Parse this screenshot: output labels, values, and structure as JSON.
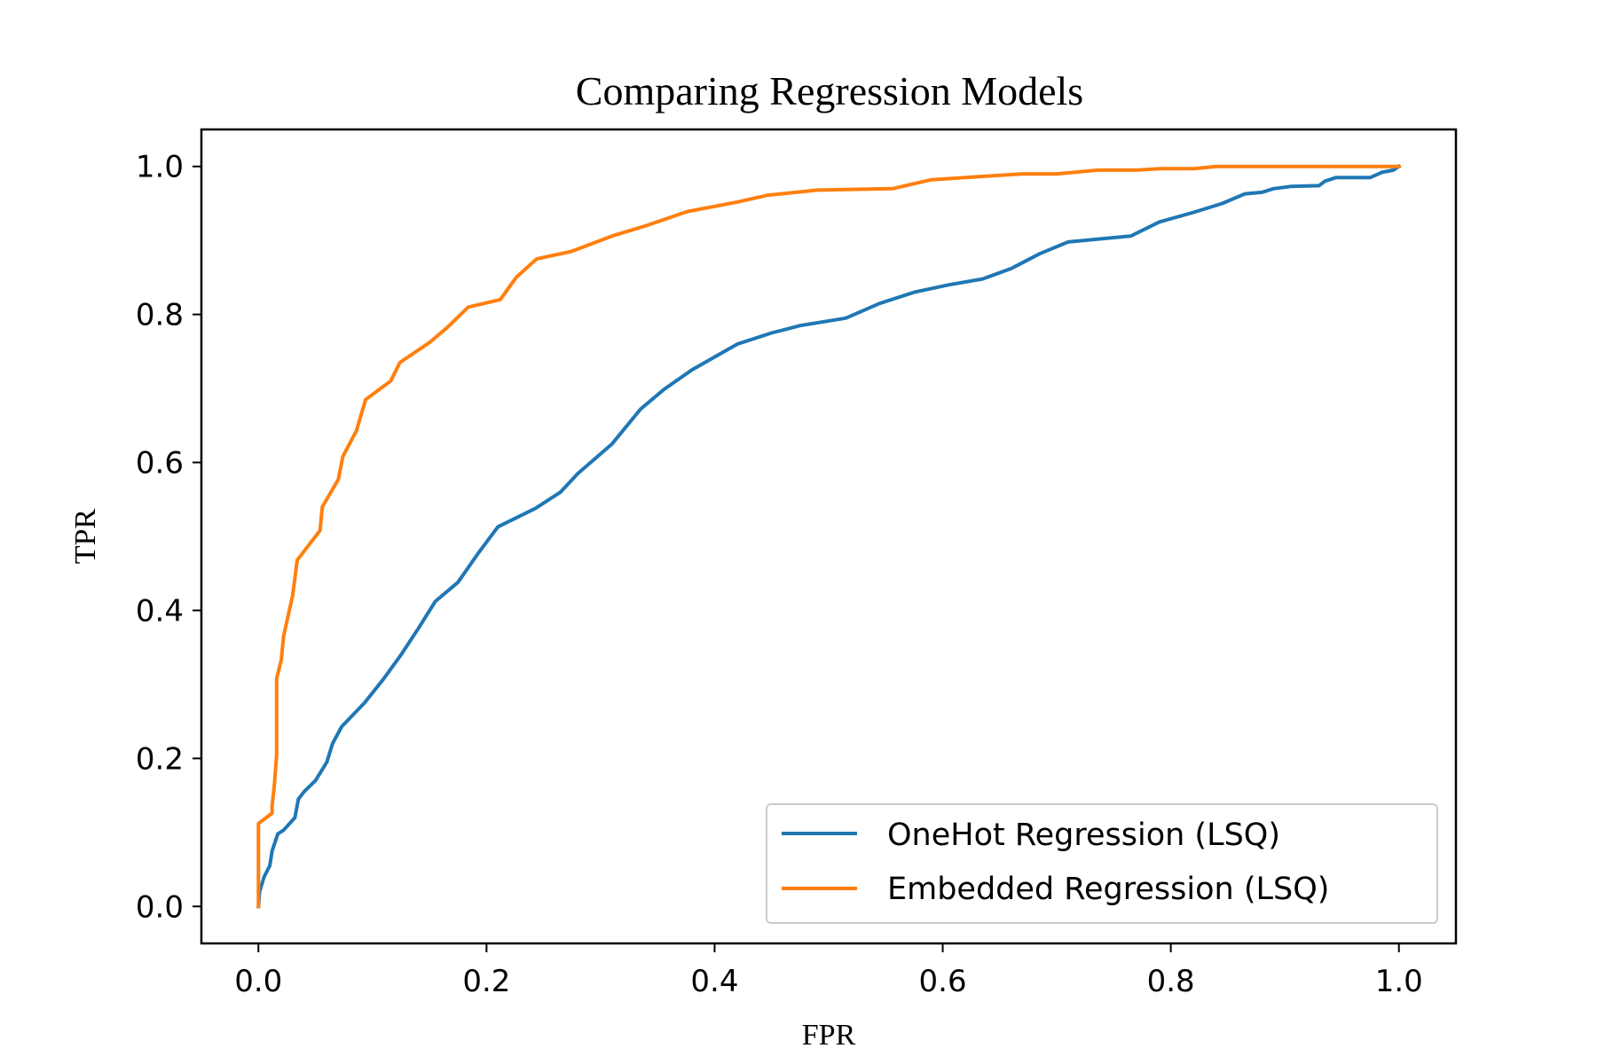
{
  "chart_data": {
    "type": "line",
    "title": "Comparing Regression Models",
    "xlabel": "FPR",
    "ylabel": "TPR",
    "xlim": [
      -0.05,
      1.05
    ],
    "ylim": [
      -0.05,
      1.05
    ],
    "xticks": [
      "0.0",
      "0.2",
      "0.4",
      "0.6",
      "0.8",
      "1.0"
    ],
    "yticks": [
      "0.0",
      "0.2",
      "0.4",
      "0.6",
      "0.8",
      "1.0"
    ],
    "grid": false,
    "legend_position": "lower-right",
    "series": [
      {
        "name": "OneHot Regression (LSQ)",
        "color": "#1f77b4",
        "points": [
          [
            0.0,
            0.0
          ],
          [
            0.001,
            0.02
          ],
          [
            0.005,
            0.04
          ],
          [
            0.01,
            0.055
          ],
          [
            0.012,
            0.075
          ],
          [
            0.017,
            0.098
          ],
          [
            0.022,
            0.103
          ],
          [
            0.032,
            0.12
          ],
          [
            0.035,
            0.145
          ],
          [
            0.04,
            0.155
          ],
          [
            0.05,
            0.17
          ],
          [
            0.06,
            0.195
          ],
          [
            0.065,
            0.22
          ],
          [
            0.073,
            0.243
          ],
          [
            0.093,
            0.275
          ],
          [
            0.11,
            0.308
          ],
          [
            0.125,
            0.34
          ],
          [
            0.14,
            0.375
          ],
          [
            0.155,
            0.412
          ],
          [
            0.175,
            0.438
          ],
          [
            0.193,
            0.478
          ],
          [
            0.21,
            0.513
          ],
          [
            0.243,
            0.538
          ],
          [
            0.265,
            0.56
          ],
          [
            0.28,
            0.585
          ],
          [
            0.31,
            0.625
          ],
          [
            0.335,
            0.672
          ],
          [
            0.355,
            0.698
          ],
          [
            0.38,
            0.725
          ],
          [
            0.42,
            0.76
          ],
          [
            0.45,
            0.775
          ],
          [
            0.475,
            0.785
          ],
          [
            0.515,
            0.795
          ],
          [
            0.545,
            0.815
          ],
          [
            0.575,
            0.83
          ],
          [
            0.605,
            0.84
          ],
          [
            0.635,
            0.848
          ],
          [
            0.66,
            0.862
          ],
          [
            0.685,
            0.882
          ],
          [
            0.71,
            0.898
          ],
          [
            0.765,
            0.906
          ],
          [
            0.79,
            0.925
          ],
          [
            0.82,
            0.938
          ],
          [
            0.845,
            0.95
          ],
          [
            0.865,
            0.963
          ],
          [
            0.88,
            0.965
          ],
          [
            0.89,
            0.97
          ],
          [
            0.905,
            0.973
          ],
          [
            0.93,
            0.974
          ],
          [
            0.935,
            0.98
          ],
          [
            0.945,
            0.985
          ],
          [
            0.975,
            0.985
          ],
          [
            0.985,
            0.992
          ],
          [
            0.995,
            0.995
          ],
          [
            1.0,
            1.0
          ]
        ]
      },
      {
        "name": "Embedded Regression (LSQ)",
        "color": "#ff7f0e",
        "points": [
          [
            0.0,
            0.0
          ],
          [
            0.0,
            0.112
          ],
          [
            0.012,
            0.126
          ],
          [
            0.012,
            0.136
          ],
          [
            0.014,
            0.165
          ],
          [
            0.016,
            0.205
          ],
          [
            0.016,
            0.308
          ],
          [
            0.02,
            0.333
          ],
          [
            0.022,
            0.365
          ],
          [
            0.03,
            0.42
          ],
          [
            0.034,
            0.468
          ],
          [
            0.054,
            0.508
          ],
          [
            0.056,
            0.54
          ],
          [
            0.07,
            0.577
          ],
          [
            0.074,
            0.608
          ],
          [
            0.086,
            0.643
          ],
          [
            0.094,
            0.685
          ],
          [
            0.116,
            0.71
          ],
          [
            0.124,
            0.735
          ],
          [
            0.15,
            0.762
          ],
          [
            0.166,
            0.783
          ],
          [
            0.184,
            0.81
          ],
          [
            0.212,
            0.82
          ],
          [
            0.226,
            0.85
          ],
          [
            0.244,
            0.875
          ],
          [
            0.274,
            0.885
          ],
          [
            0.31,
            0.906
          ],
          [
            0.34,
            0.92
          ],
          [
            0.376,
            0.939
          ],
          [
            0.42,
            0.952
          ],
          [
            0.446,
            0.961
          ],
          [
            0.49,
            0.968
          ],
          [
            0.556,
            0.97
          ],
          [
            0.59,
            0.982
          ],
          [
            0.63,
            0.986
          ],
          [
            0.67,
            0.99
          ],
          [
            0.7,
            0.99
          ],
          [
            0.736,
            0.995
          ],
          [
            0.77,
            0.995
          ],
          [
            0.79,
            0.997
          ],
          [
            0.82,
            0.997
          ],
          [
            0.84,
            1.0
          ],
          [
            1.0,
            1.0
          ]
        ]
      }
    ]
  }
}
